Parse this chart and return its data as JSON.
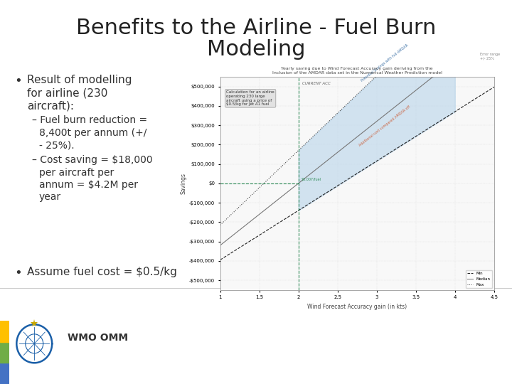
{
  "title_line1": "Benefits to the Airline - Fuel Burn",
  "title_line2": "Modeling",
  "title_fontsize": 22,
  "title_color": "#222222",
  "bg_color": "#ffffff",
  "bullet1_main": "Result of modelling\nfor airline (230\naircraft):",
  "sub1_line1": "– Fuel burn reduction =",
  "sub1_line2": "  8,400t per annum (+/",
  "sub1_line3": "  - 25%).",
  "sub2_line1": "– Cost saving = $18,000",
  "sub2_line2": "  per aircraft per",
  "sub2_line3": "  annum = $4.2M per",
  "sub2_line4": "  year",
  "bullet2": "Assume fuel cost = $0.5/kg",
  "left_bar_colors": [
    "#4472c4",
    "#70ad47",
    "#ffc000"
  ],
  "wmo_text": "WMO OMM",
  "chart_title1": "Yearly saving due to Wind Forecast Accuracy gain deriving from the",
  "chart_title2": "Inclusion of the AMDAR data set in the Numerical Weather Prediction model",
  "chart_xlabel": "Wind Forecast Accuracy gain (in kts)",
  "chart_ylabel": "Savings",
  "annotation_box": "Calculation for an airline\noperating 230 large\naircraft using a price of\n$0.5/kg for Jet A1 fuel",
  "current_acc_label": "CURRENT ACC",
  "error_range_label": "Error range\n+/- 25%",
  "legend_min": "Min",
  "legend_median": "Median",
  "legend_max": "Max"
}
